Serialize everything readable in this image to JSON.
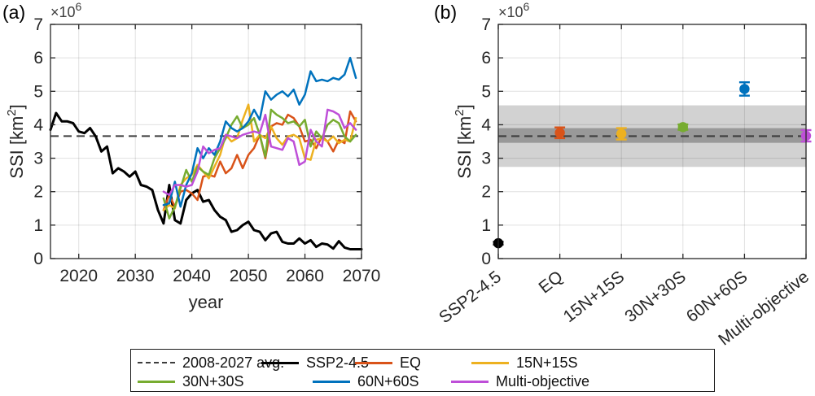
{
  "figure": {
    "panel_a_letter": "(a)",
    "panel_b_letter": "(b)"
  },
  "colors": {
    "ssp245": "#000000",
    "eq": "#D95319",
    "n15s15": "#EDB120",
    "n30s30": "#77AC30",
    "n60s60": "#0072BD",
    "multi_objective": "#BE4FD8",
    "avg_dash": "#3d3d3d",
    "band_outer": "#d2d2d2",
    "band_inner": "#999999",
    "axis": "#262626"
  },
  "legend": {
    "entries": [
      {
        "label": "2008-2027 avg.",
        "color": "#3d3d3d",
        "dash": true
      },
      {
        "label": "SSP2-4.5",
        "color": "#000000",
        "dash": false
      },
      {
        "label": "EQ",
        "color": "#D95319",
        "dash": false
      },
      {
        "label": "15N+15S",
        "color": "#EDB120",
        "dash": false
      },
      {
        "label": "30N+30S",
        "color": "#77AC30",
        "dash": false
      },
      {
        "label": "60N+60S",
        "color": "#0072BD",
        "dash": false
      },
      {
        "label": "Multi-objective",
        "color": "#BE4FD8",
        "dash": false
      }
    ]
  },
  "chart_data": [
    {
      "type": "line",
      "title": "(a)",
      "xlabel": "year",
      "ylabel": {
        "pre": "SSI [km",
        "sup": "2",
        "post": "]"
      },
      "multiplier": {
        "base": "×10",
        "exp": "6"
      },
      "xlim": [
        2015,
        2070
      ],
      "ylim": [
        0,
        7
      ],
      "xticks": [
        2020,
        2030,
        2040,
        2050,
        2060,
        2070
      ],
      "yticks": [
        0,
        1,
        2,
        3,
        4,
        5,
        6,
        7
      ],
      "grid": true,
      "avg_line": {
        "label": "2008-2027 avg.",
        "value": 3.66
      },
      "units_note": "values in 1e6 km2",
      "series": [
        {
          "name": "SSP2-4.5",
          "color": "#000000",
          "width": 3,
          "x_start": 2015,
          "values": [
            3.85,
            4.35,
            4.1,
            4.1,
            4.05,
            3.8,
            3.75,
            3.9,
            3.65,
            3.2,
            3.35,
            2.55,
            2.7,
            2.6,
            2.45,
            2.6,
            2.2,
            2.15,
            2.05,
            1.45,
            1.05,
            2.2,
            1.15,
            1.05,
            1.75,
            1.95,
            2.05,
            1.7,
            1.75,
            1.45,
            1.25,
            1.15,
            0.8,
            0.85,
            1.0,
            1.1,
            0.85,
            0.8,
            0.55,
            0.75,
            0.8,
            0.5,
            0.45,
            0.45,
            0.6,
            0.45,
            0.55,
            0.35,
            0.45,
            0.42,
            0.3,
            0.52,
            0.33,
            0.28,
            0.28,
            0.28
          ]
        },
        {
          "name": "EQ",
          "color": "#D95319",
          "width": 2.5,
          "x_start": 2035,
          "values": [
            1.45,
            1.9,
            1.55,
            2.0,
            2.05,
            1.95,
            1.75,
            2.45,
            2.5,
            2.45,
            2.9,
            2.55,
            2.7,
            3.1,
            2.7,
            3.1,
            3.3,
            3.7,
            3.0,
            3.95,
            4.05,
            4.0,
            4.3,
            4.2,
            3.95,
            3.5,
            3.55,
            3.3,
            3.65,
            3.5,
            3.2,
            3.55,
            3.45,
            4.4,
            4.1
          ]
        },
        {
          "name": "15N+15S",
          "color": "#EDB120",
          "width": 2.5,
          "x_start": 2035,
          "values": [
            1.45,
            1.6,
            1.5,
            2.2,
            2.4,
            2.5,
            2.8,
            2.6,
            2.4,
            2.75,
            3.1,
            3.7,
            3.5,
            3.6,
            4.15,
            4.6,
            3.5,
            3.7,
            3.6,
            3.95,
            3.6,
            3.4,
            3.65,
            3.7,
            3.6,
            3.0,
            2.95,
            3.55,
            3.6,
            3.5,
            3.65,
            3.45,
            3.55,
            3.5,
            4.2
          ]
        },
        {
          "name": "30N+30S",
          "color": "#77AC30",
          "width": 2.5,
          "x_start": 2035,
          "values": [
            1.8,
            1.2,
            1.55,
            2.1,
            2.65,
            2.3,
            2.75,
            2.6,
            2.5,
            3.0,
            3.3,
            3.6,
            4.0,
            4.25,
            3.9,
            4.0,
            4.2,
            3.7,
            3.05,
            4.45,
            4.3,
            4.2,
            4.05,
            4.1,
            3.95,
            4.15,
            3.35,
            3.8,
            3.6,
            4.0,
            4.15,
            4.05,
            3.65,
            3.5,
            3.7
          ]
        },
        {
          "name": "60N+60S",
          "color": "#0072BD",
          "width": 2.5,
          "x_start": 2035,
          "values": [
            1.6,
            1.65,
            2.3,
            1.55,
            2.2,
            2.55,
            3.3,
            3.0,
            3.3,
            3.1,
            3.5,
            4.1,
            3.9,
            3.8,
            3.9,
            4.1,
            4.45,
            4.15,
            5.0,
            4.75,
            4.9,
            5.0,
            4.85,
            5.05,
            4.6,
            4.9,
            5.6,
            5.3,
            5.35,
            5.3,
            5.4,
            5.35,
            5.5,
            6.0,
            5.4
          ]
        },
        {
          "name": "Multi-objective",
          "color": "#BE4FD8",
          "width": 2.5,
          "x_start": 2035,
          "values": [
            2.0,
            1.9,
            2.2,
            2.2,
            2.15,
            2.2,
            2.6,
            3.35,
            3.15,
            3.25,
            3.3,
            3.7,
            3.65,
            3.6,
            3.7,
            3.75,
            3.8,
            3.75,
            4.3,
            3.35,
            3.3,
            3.25,
            3.6,
            3.5,
            2.8,
            2.9,
            3.85,
            3.5,
            3.35,
            4.45,
            4.4,
            4.3,
            3.9,
            4.05,
            3.85
          ]
        }
      ]
    },
    {
      "type": "scatter",
      "title": "(b)",
      "ylabel": {
        "pre": "SSI [km",
        "sup": "2",
        "post": "]"
      },
      "multiplier": {
        "base": "×10",
        "exp": "6"
      },
      "ylim": [
        0,
        7
      ],
      "yticks": [
        0,
        1,
        2,
        3,
        4,
        5,
        6,
        7
      ],
      "categories": [
        "SSP2-4.5",
        "EQ",
        "15N+15S",
        "30N+30S",
        "60N+60S",
        "Multi-objective"
      ],
      "grid": true,
      "avg_line": {
        "label": "2008-2027 avg.",
        "value": 3.66
      },
      "shaded_bands": {
        "outer": [
          2.74,
          4.58
        ],
        "inner": [
          3.46,
          3.9
        ]
      },
      "units_note": "values in 1e6 km2",
      "points": [
        {
          "label": "SSP2-4.5",
          "value": 0.46,
          "err": 0.04,
          "color": "#000000"
        },
        {
          "label": "EQ",
          "value": 3.76,
          "err": 0.16,
          "color": "#D95319"
        },
        {
          "label": "15N+15S",
          "value": 3.73,
          "err": 0.17,
          "color": "#EDB120"
        },
        {
          "label": "30N+30S",
          "value": 3.93,
          "err": 0.08,
          "color": "#77AC30"
        },
        {
          "label": "60N+60S",
          "value": 5.07,
          "err": 0.2,
          "color": "#0072BD"
        },
        {
          "label": "Multi-objective",
          "value": 3.67,
          "err": 0.17,
          "color": "#BE4FD8"
        }
      ]
    }
  ]
}
